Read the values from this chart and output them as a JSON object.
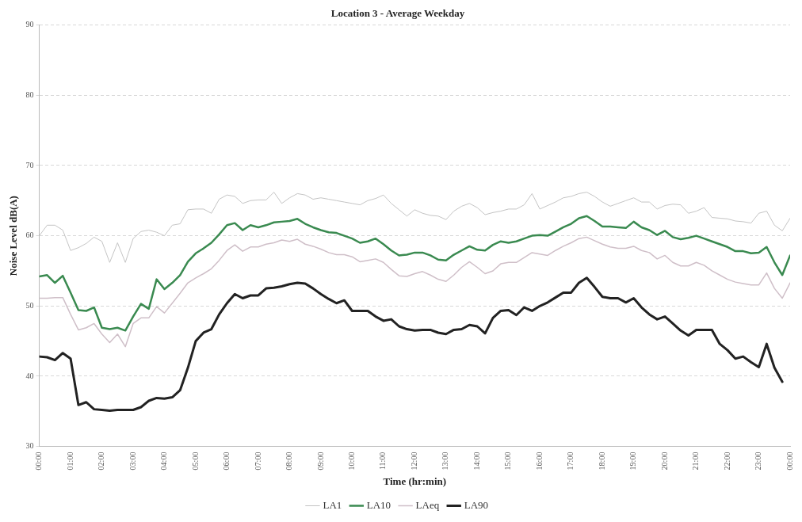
{
  "chart_data": {
    "type": "line",
    "title": "Location 3 - Average Weekday",
    "xlabel": "Time (hr:min)",
    "ylabel": "Noise Level dB(A)",
    "x": [
      0,
      0.25,
      0.5,
      0.75,
      1,
      1.25,
      1.5,
      1.75,
      2,
      2.25,
      2.5,
      2.75,
      3,
      3.25,
      3.5,
      3.75,
      4,
      4.25,
      4.5,
      4.75,
      5,
      5.25,
      5.5,
      5.75,
      6,
      6.25,
      6.5,
      6.75,
      7,
      7.25,
      7.5,
      7.75,
      8,
      8.25,
      8.5,
      8.75,
      9,
      9.25,
      9.5,
      9.75,
      10,
      10.25,
      10.5,
      10.75,
      11,
      11.25,
      11.5,
      11.75,
      12,
      12.25,
      12.5,
      12.75,
      13,
      13.25,
      13.5,
      13.75,
      14,
      14.25,
      14.5,
      14.75,
      15,
      15.25,
      15.5,
      15.75,
      16,
      16.25,
      16.5,
      16.75,
      17,
      17.25,
      17.5,
      17.75,
      18,
      18.25,
      18.5,
      18.75,
      19,
      19.25,
      19.5,
      19.75,
      20,
      20.25,
      20.5,
      20.75,
      21,
      21.25,
      21.5,
      21.75,
      22,
      22.25,
      22.5,
      22.75,
      23,
      23.25,
      23.5,
      23.75,
      24
    ],
    "series": [
      {
        "name": "LA1",
        "color": "#c4c4c4",
        "values": [
          60,
          61.5,
          61.5,
          60.8,
          57.9,
          58.3,
          58.9,
          59.8,
          59.2,
          56.2,
          59,
          56.2,
          59.6,
          60.6,
          60.8,
          60.5,
          60,
          61.5,
          61.7,
          63.7,
          63.8,
          63.8,
          63.2,
          65.2,
          65.8,
          65.6,
          64.6,
          65,
          65.1,
          65.1,
          66.2,
          64.6,
          65.4,
          66,
          65.8,
          65.2,
          65.4,
          65.2,
          65,
          64.8,
          64.6,
          64.4,
          65,
          65.3,
          65.8,
          64.6,
          63.7,
          62.8,
          63.7,
          63.2,
          62.9,
          62.8,
          62.3,
          63.5,
          64.2,
          64.6,
          64,
          63,
          63.3,
          63.5,
          63.8,
          63.8,
          64.4,
          66,
          63.8,
          64.3,
          64.8,
          65.4,
          65.6,
          66,
          66.2,
          65.6,
          64.8,
          64.2,
          64.6,
          65,
          65.4,
          64.8,
          64.8,
          63.8,
          64.3,
          64.5,
          64.4,
          63.2,
          63.5,
          64,
          62.6,
          62.5,
          62.4,
          62.1,
          62,
          61.8,
          63.2,
          63.5,
          61.5,
          60.7,
          62.5
        ]
      },
      {
        "name": "LA10",
        "color": "#3a8a50",
        "values": [
          54.2,
          54.4,
          53.3,
          54.3,
          51.9,
          49.4,
          49.3,
          49.8,
          46.9,
          46.7,
          46.9,
          46.5,
          48.5,
          50.3,
          49.6,
          53.8,
          52.4,
          53.3,
          54.4,
          56.3,
          57.5,
          58.2,
          59,
          60.2,
          61.5,
          61.8,
          60.8,
          61.5,
          61.2,
          61.5,
          61.9,
          62,
          62.1,
          62.4,
          61.7,
          61.2,
          60.8,
          60.5,
          60.4,
          60,
          59.6,
          59,
          59.2,
          59.6,
          58.8,
          57.9,
          57.2,
          57.3,
          57.6,
          57.6,
          57.2,
          56.6,
          56.5,
          57.3,
          57.9,
          58.5,
          58,
          57.9,
          58.7,
          59.2,
          59,
          59.2,
          59.6,
          60,
          60.1,
          60,
          60.6,
          61.2,
          61.7,
          62.5,
          62.8,
          62.1,
          61.3,
          61.3,
          61.2,
          61.1,
          62,
          61.2,
          60.8,
          60.1,
          60.7,
          59.8,
          59.5,
          59.7,
          60,
          59.6,
          59.2,
          58.8,
          58.4,
          57.8,
          57.8,
          57.5,
          57.6,
          58.4,
          56.2,
          54.4,
          57.2
        ]
      },
      {
        "name": "LAeq",
        "color": "#cfbfc8",
        "values": [
          51.1,
          51.1,
          51.2,
          51.2,
          48.8,
          46.6,
          46.9,
          47.5,
          46,
          44.8,
          46,
          44.2,
          47.5,
          48.3,
          48.3,
          49.9,
          49,
          50.4,
          51.8,
          53.3,
          54,
          54.6,
          55.3,
          56.5,
          57.9,
          58.7,
          57.8,
          58.4,
          58.4,
          58.8,
          59,
          59.4,
          59.2,
          59.5,
          58.8,
          58.5,
          58.1,
          57.6,
          57.3,
          57.3,
          57,
          56.3,
          56.5,
          56.7,
          56.2,
          55.2,
          54.3,
          54.2,
          54.6,
          54.9,
          54.4,
          53.8,
          53.5,
          54.4,
          55.5,
          56.3,
          55.5,
          54.6,
          55,
          56,
          56.2,
          56.2,
          56.9,
          57.6,
          57.4,
          57.2,
          57.9,
          58.5,
          59,
          59.6,
          59.8,
          59.3,
          58.8,
          58.4,
          58.2,
          58.2,
          58.5,
          57.9,
          57.6,
          56.7,
          57.2,
          56.2,
          55.7,
          55.7,
          56.2,
          55.8,
          55,
          54.4,
          53.8,
          53.4,
          53.2,
          53,
          53,
          54.7,
          52.5,
          51.1,
          53.3
        ]
      },
      {
        "name": "LA90",
        "color": "#222222",
        "values": [
          42.8,
          42.7,
          42.3,
          43.3,
          42.5,
          35.9,
          36.3,
          35.3,
          35.2,
          35.1,
          35.2,
          35.2,
          35.2,
          35.6,
          36.5,
          36.9,
          36.8,
          37,
          38,
          41.2,
          45,
          46.2,
          46.7,
          48.8,
          50.4,
          51.7,
          51.1,
          51.5,
          51.5,
          52.5,
          52.6,
          52.8,
          53.1,
          53.3,
          53.2,
          52.5,
          51.7,
          51,
          50.4,
          50.8,
          49.3,
          49.3,
          49.3,
          48.5,
          47.9,
          48.1,
          47.1,
          46.7,
          46.5,
          46.6,
          46.6,
          46.2,
          46,
          46.6,
          46.7,
          47.3,
          47.1,
          46.1,
          48.3,
          49.3,
          49.4,
          48.7,
          49.8,
          49.3,
          50,
          50.5,
          51.2,
          51.9,
          51.9,
          53.3,
          54,
          52.7,
          51.3,
          51.1,
          51.1,
          50.5,
          51.1,
          49.8,
          48.8,
          48.1,
          48.5,
          47.5,
          46.5,
          45.8,
          46.6,
          46.6,
          46.6,
          44.6,
          43.7,
          42.5,
          42.8,
          42,
          41.3,
          44.6,
          41.2,
          39.2,
          null
        ]
      }
    ],
    "xlim": [
      0,
      24
    ],
    "xticks": [
      {
        "value": 0,
        "label": "00:00"
      },
      {
        "value": 1,
        "label": "01:00"
      },
      {
        "value": 2,
        "label": "02:00"
      },
      {
        "value": 3,
        "label": "03:00"
      },
      {
        "value": 4,
        "label": "04:00"
      },
      {
        "value": 5,
        "label": "05:00"
      },
      {
        "value": 6,
        "label": "06:00"
      },
      {
        "value": 7,
        "label": "07:00"
      },
      {
        "value": 8,
        "label": "08:00"
      },
      {
        "value": 9,
        "label": "09:00"
      },
      {
        "value": 10,
        "label": "10:00"
      },
      {
        "value": 11,
        "label": "11:00"
      },
      {
        "value": 12,
        "label": "12:00"
      },
      {
        "value": 13,
        "label": "13:00"
      },
      {
        "value": 14,
        "label": "14:00"
      },
      {
        "value": 15,
        "label": "15:00"
      },
      {
        "value": 16,
        "label": "16:00"
      },
      {
        "value": 17,
        "label": "17:00"
      },
      {
        "value": 18,
        "label": "18:00"
      },
      {
        "value": 19,
        "label": "19:00"
      },
      {
        "value": 20,
        "label": "20:00"
      },
      {
        "value": 21,
        "label": "21:00"
      },
      {
        "value": 22,
        "label": "22:00"
      },
      {
        "value": 23,
        "label": "23:00"
      },
      {
        "value": 24,
        "label": "00:00"
      }
    ],
    "ylim": [
      30,
      90
    ],
    "yticks": [
      30,
      40,
      50,
      60,
      70,
      80,
      90
    ],
    "grid": "y",
    "legend": "bottom",
    "marker": "none",
    "line_style": "solid"
  }
}
